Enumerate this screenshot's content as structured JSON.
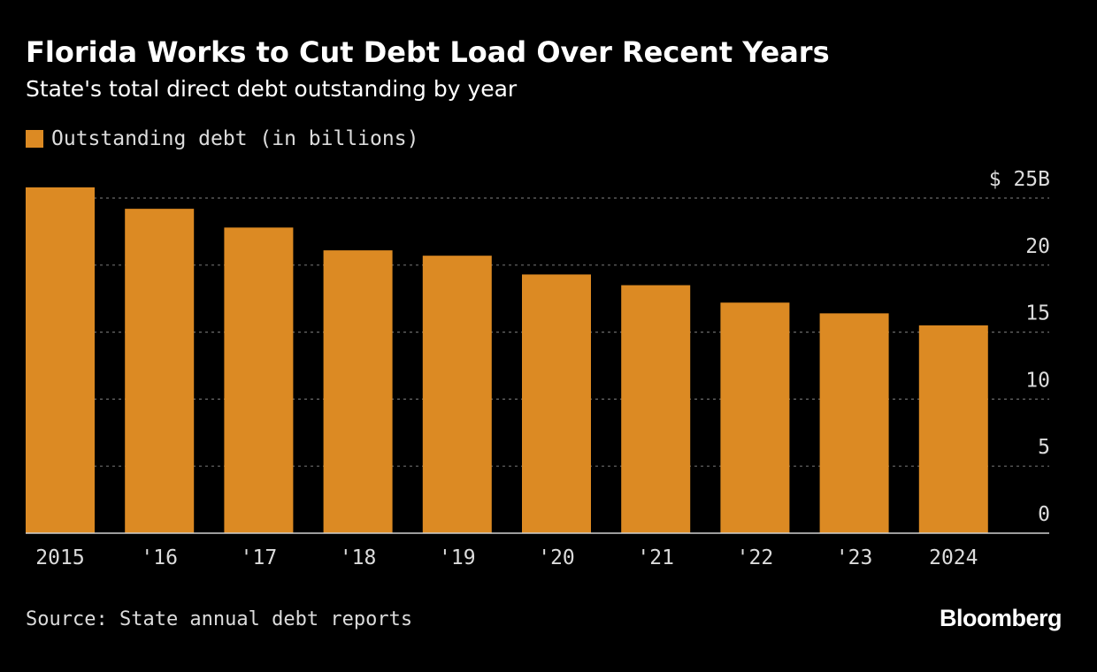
{
  "header": {
    "title": "Florida Works to Cut Debt Load Over Recent Years",
    "subtitle": "State's total direct debt outstanding by year"
  },
  "legend": {
    "label": "Outstanding debt (in billions)",
    "color": "#DC8A23"
  },
  "footer": {
    "source": "Source: State annual debt reports",
    "brand": "Bloomberg"
  },
  "chart_data": {
    "type": "bar",
    "title": "Florida Works to Cut Debt Load Over Recent Years",
    "subtitle": "State's total direct debt outstanding by year",
    "categories": [
      "2015",
      "'16",
      "'17",
      "'18",
      "'19",
      "'20",
      "'21",
      "'22",
      "'23",
      "2024"
    ],
    "series": [
      {
        "name": "Outstanding debt (in billions)",
        "values": [
          25.8,
          24.2,
          22.8,
          21.1,
          20.7,
          19.3,
          18.5,
          17.2,
          16.4,
          15.5
        ],
        "color": "#DC8A23"
      }
    ],
    "ylim": [
      0,
      25
    ],
    "yticks": [
      0,
      5,
      10,
      15,
      20,
      25
    ],
    "ytick_labels": [
      "0",
      "5",
      "10",
      "15",
      "20",
      "$ 25B"
    ],
    "xlabel": "",
    "ylabel": "",
    "grid": true,
    "y_axis_position": "right"
  }
}
